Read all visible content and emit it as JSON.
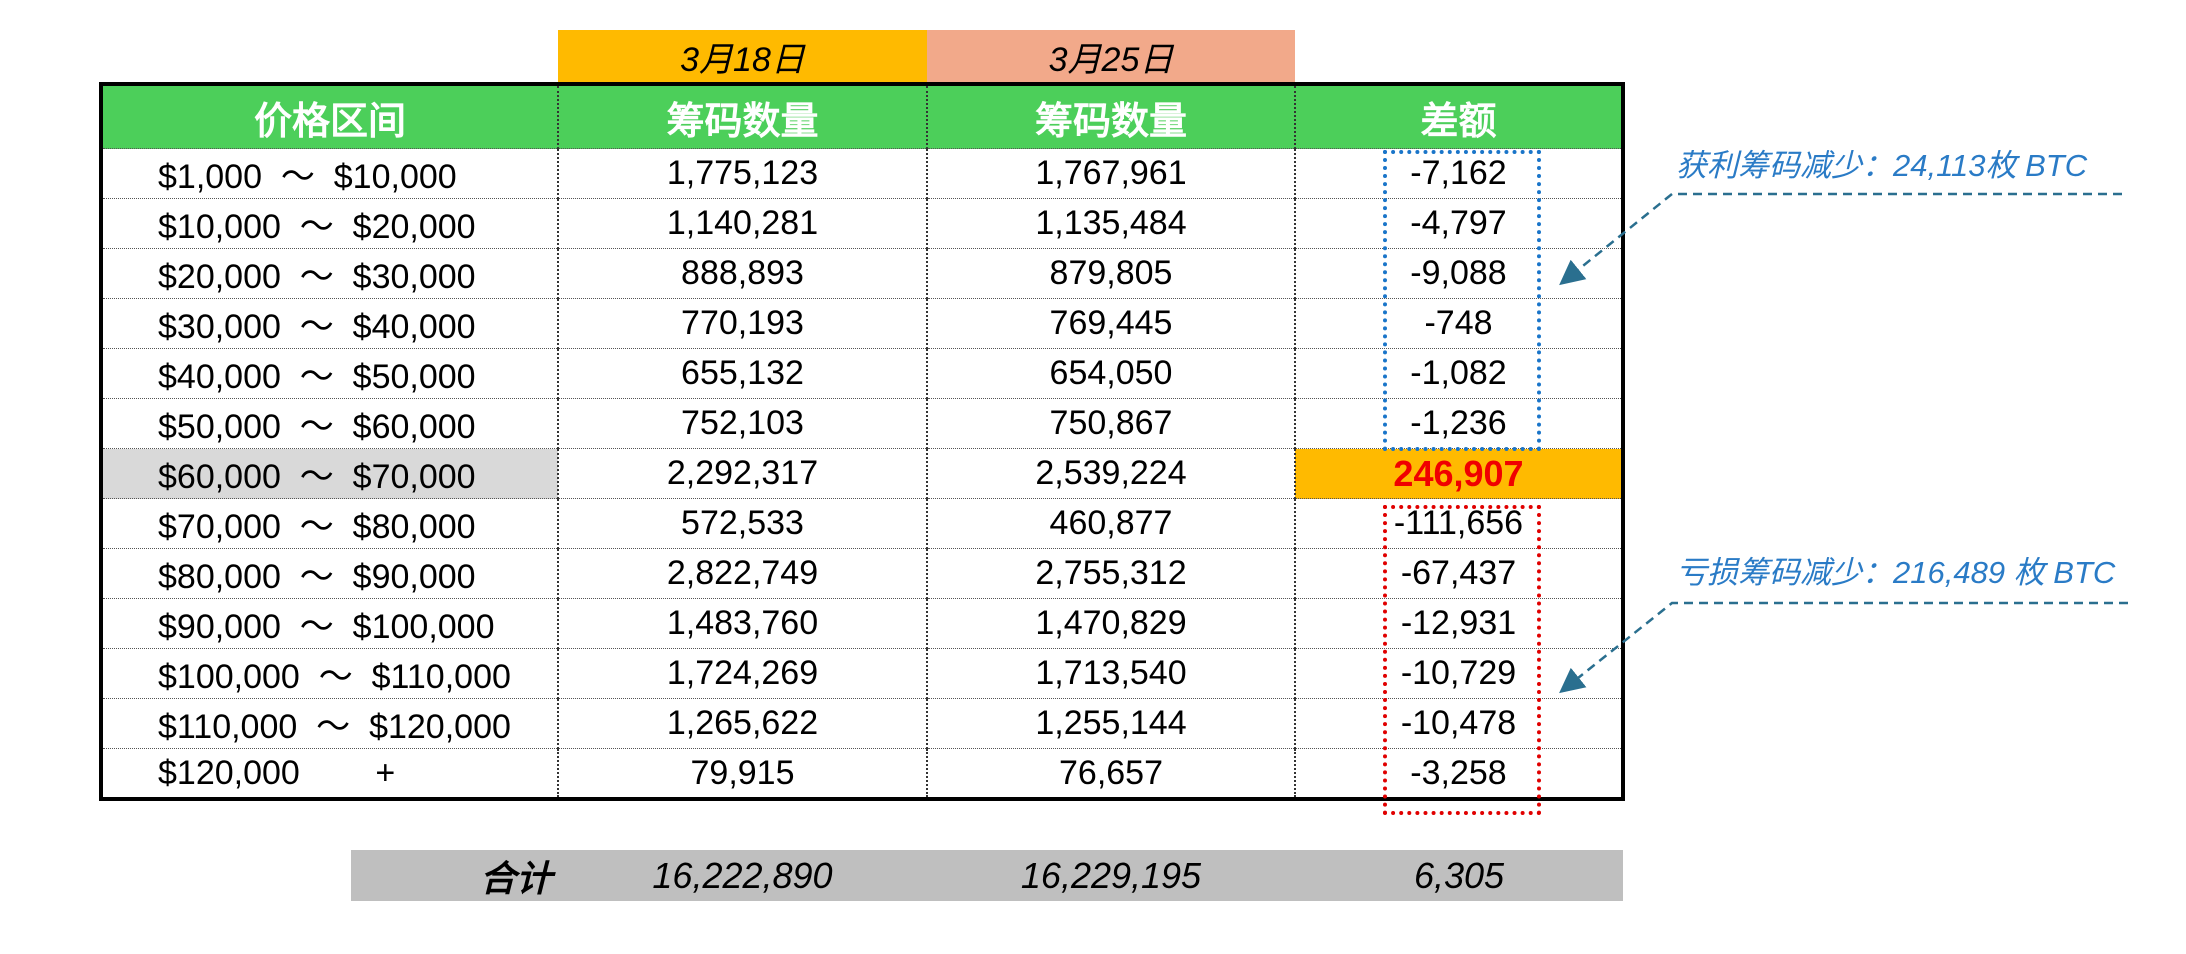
{
  "date_headers": [
    "3月18日",
    "3月25日"
  ],
  "columns": [
    "价格区间",
    "筹码数量",
    "筹码数量",
    "差额"
  ],
  "rows": [
    {
      "range": "$1,000  ～  $10,000",
      "d1": "1,775,123",
      "d2": "1,767,961",
      "diff": "-7,162"
    },
    {
      "range": "$10,000  ～  $20,000",
      "d1": "1,140,281",
      "d2": "1,135,484",
      "diff": "-4,797"
    },
    {
      "range": "$20,000  ～  $30,000",
      "d1": "888,893",
      "d2": "879,805",
      "diff": "-9,088"
    },
    {
      "range": "$30,000  ～  $40,000",
      "d1": "770,193",
      "d2": "769,445",
      "diff": "-748"
    },
    {
      "range": "$40,000  ～  $50,000",
      "d1": "655,132",
      "d2": "654,050",
      "diff": "-1,082"
    },
    {
      "range": "$50,000  ～  $60,000",
      "d1": "752,103",
      "d2": "750,867",
      "diff": "-1,236"
    },
    {
      "range": "$60,000  ～  $70,000",
      "d1": "2,292,317",
      "d2": "2,539,224",
      "diff": "246,907"
    },
    {
      "range": "$70,000  ～  $80,000",
      "d1": "572,533",
      "d2": "460,877",
      "diff": "-111,656"
    },
    {
      "range": "$80,000  ～  $90,000",
      "d1": "2,822,749",
      "d2": "2,755,312",
      "diff": "-67,437"
    },
    {
      "range": "$90,000  ～  $100,000",
      "d1": "1,483,760",
      "d2": "1,470,829",
      "diff": "-12,931"
    },
    {
      "range": "$100,000  ～  $110,000",
      "d1": "1,724,269",
      "d2": "1,713,540",
      "diff": "-10,729"
    },
    {
      "range": "$110,000  ～  $120,000",
      "d1": "1,265,622",
      "d2": "1,255,144",
      "diff": "-10,478"
    },
    {
      "range": "$120,000        +",
      "d1": "79,915",
      "d2": "76,657",
      "diff": "-3,258"
    }
  ],
  "summary": {
    "label": "合计",
    "d1": "16,222,890",
    "d2": "16,229,195",
    "diff": "6,305"
  },
  "annotations": {
    "profit": "获利筹码减少：24,113枚 BTC",
    "loss": "亏损筹码减少：216,489 枚 BTC"
  },
  "colors": {
    "header_green": "#4ccf5a",
    "date1_bg": "#ffba00",
    "date2_bg": "#f2a98a",
    "highlight_row": "#d9d9d9",
    "highlight_value": "#f00000",
    "annotation_blue": "#2a7bc6",
    "profit_box": "#1a75c9",
    "loss_box": "#e00000",
    "summary_bg": "#bfbfbf"
  }
}
